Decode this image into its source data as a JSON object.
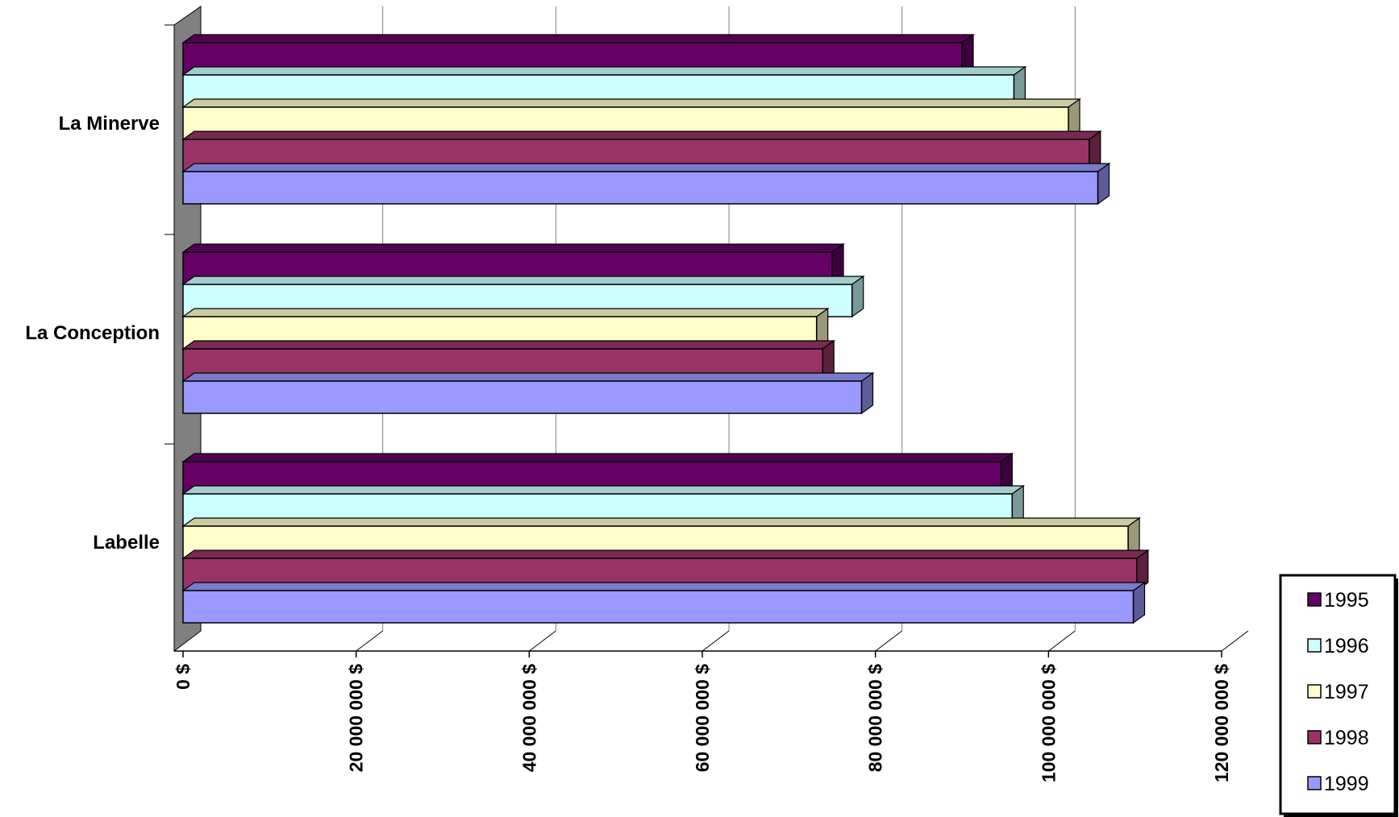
{
  "chart_data": {
    "type": "bar",
    "orientation": "horizontal",
    "style": "3d-clustered",
    "categories": [
      "La Minerve",
      "La Conception",
      "Labelle"
    ],
    "series": [
      {
        "name": "1995",
        "color": "#660066",
        "values": [
          90000000,
          75000000,
          94500000
        ]
      },
      {
        "name": "1996",
        "color": "#ccffff",
        "values": [
          96000000,
          77300000,
          95800000
        ]
      },
      {
        "name": "1997",
        "color": "#ffffcc",
        "values": [
          102300000,
          73200000,
          109200000
        ]
      },
      {
        "name": "1998",
        "color": "#993366",
        "values": [
          104700000,
          73900000,
          110200000
        ]
      },
      {
        "name": "1999",
        "color": "#9999ff",
        "values": [
          105700000,
          78400000,
          109800000
        ]
      }
    ],
    "xlim": [
      0,
      120000000
    ],
    "x_ticks": [
      "0 $",
      "20 000 000 $",
      "40 000 000 $",
      "60 000 000 $",
      "80 000 000 $",
      "100 000 000 $",
      "120 000 000 $"
    ],
    "grid": "vertical-major",
    "legend_position": "bottom-right",
    "title": "",
    "xlabel": "",
    "ylabel": ""
  }
}
